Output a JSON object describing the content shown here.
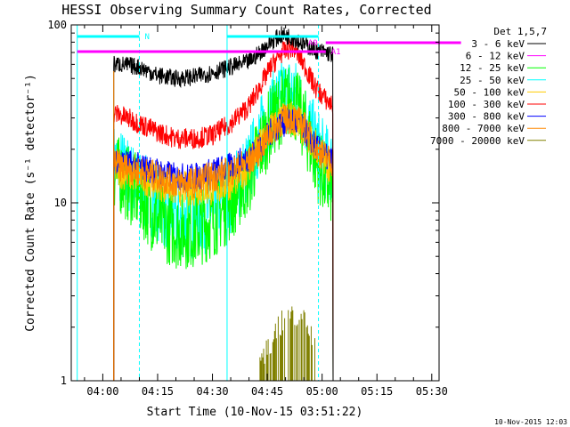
{
  "chart_data": {
    "type": "line",
    "title": "HESSI Observing Summary Count Rates, Corrected",
    "xlabel": "Start Time (10-Nov-15 03:51:22)",
    "ylabel": "Corrected Count Rate (s⁻¹ detector⁻¹)",
    "yscale": "log",
    "ylim": [
      1,
      100
    ],
    "xlim": [
      "03:51:22",
      "05:32:00"
    ],
    "x_ticks": [
      "04:00",
      "04:15",
      "04:30",
      "04:45",
      "05:00",
      "05:15",
      "05:30"
    ],
    "y_ticks": [
      "1",
      "10",
      "100"
    ],
    "legend_title": "Det 1,5,7",
    "legend_position": "right",
    "x_unit": "minutes after 04:00",
    "x": [
      3,
      5,
      10,
      15,
      20,
      25,
      30,
      35,
      40,
      43,
      46,
      49,
      52,
      55,
      58,
      61,
      63
    ],
    "series": [
      {
        "name": "3 - 6 keV",
        "color": "#000000",
        "values": [
          60,
          60,
          58,
          52,
          50,
          51,
          54,
          58,
          62,
          70,
          80,
          88,
          85,
          78,
          72,
          70,
          68
        ]
      },
      {
        "name": "6 - 12 keV",
        "color": "#ff00ff",
        "values": [
          null,
          null,
          null,
          null,
          null,
          null,
          null,
          null,
          null,
          null,
          null,
          null,
          null,
          null,
          null,
          null,
          null
        ]
      },
      {
        "name": "12 - 25 keV",
        "color": "#00ff00",
        "values": [
          15,
          14,
          11,
          8,
          7,
          7,
          8,
          10,
          14,
          20,
          28,
          35,
          38,
          28,
          18,
          13,
          12
        ]
      },
      {
        "name": "25 - 50 keV",
        "color": "#00ffff",
        "values": [
          17,
          16,
          12,
          10,
          8,
          8,
          9,
          11,
          16,
          24,
          32,
          40,
          42,
          32,
          22,
          17,
          16
        ]
      },
      {
        "name": "50 - 100 keV",
        "color": "#ffcc00",
        "values": [
          16,
          15,
          14,
          13,
          12,
          12,
          12,
          13,
          16,
          21,
          26,
          29,
          30,
          26,
          21,
          17,
          16
        ]
      },
      {
        "name": "100 - 300 keV",
        "color": "#ff0000",
        "values": [
          32,
          31,
          28,
          25,
          23,
          23,
          24,
          28,
          35,
          45,
          58,
          70,
          75,
          60,
          45,
          38,
          35
        ]
      },
      {
        "name": "300 - 800 keV",
        "color": "#0000ff",
        "values": [
          18,
          17,
          16,
          15,
          14,
          14,
          15,
          16,
          18,
          21,
          25,
          28,
          29,
          26,
          21,
          18,
          17
        ]
      },
      {
        "name": "800 - 7000 keV",
        "color": "#ff8800",
        "values": [
          17,
          16,
          15,
          14,
          13,
          13,
          14,
          15,
          17,
          20,
          25,
          29,
          30,
          27,
          21,
          18,
          17
        ]
      },
      {
        "name": "7000 - 20000 keV",
        "color": "#808000",
        "values": [
          null,
          null,
          null,
          null,
          null,
          null,
          null,
          null,
          null,
          1.5,
          2,
          2.5,
          2.8,
          2.5,
          2,
          null,
          null
        ]
      }
    ],
    "annotations": {
      "saa": {
        "label": "N",
        "color": "#00ffff",
        "x": [
          -7,
          10
        ],
        "x2": [
          34,
          59
        ]
      },
      "attenuator": {
        "labels": [
          "A0",
          "A1"
        ],
        "color": "#ff00ff",
        "x": [
          -7,
          61
        ],
        "x2": [
          61,
          98
        ]
      }
    }
  },
  "footer": {
    "timestamp": "10-Nov-2015 12:03"
  }
}
